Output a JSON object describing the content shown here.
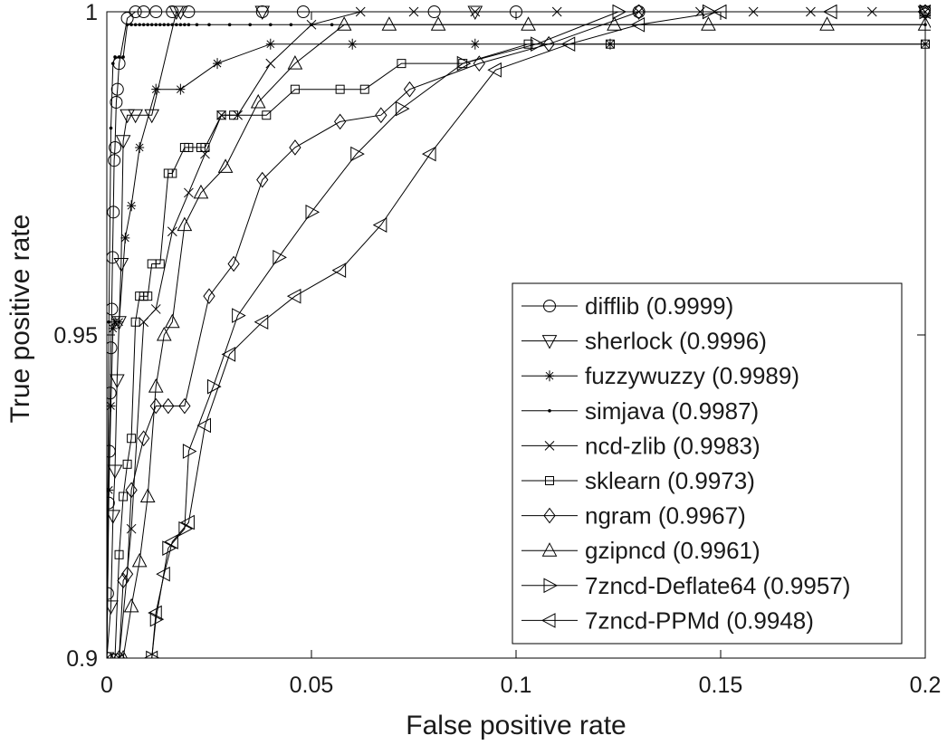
{
  "chart_data": {
    "type": "line",
    "xlabel": "False positive rate",
    "ylabel": "True positive rate",
    "xlim": [
      0,
      0.2
    ],
    "ylim": [
      0.9,
      1.0
    ],
    "xticks": [
      0,
      0.05,
      0.1,
      0.15,
      0.2
    ],
    "xtick_labels": [
      "0",
      "0.05",
      "0.1",
      "0.15",
      "0.2"
    ],
    "yticks": [
      0.9,
      0.95,
      1.0
    ],
    "ytick_labels": [
      "0.9",
      "0.95",
      "1"
    ],
    "legend_position": "bottom-right",
    "series": [
      {
        "name": "difflib",
        "label": "difflib (0.9999)",
        "marker": "circle",
        "x": [
          0,
          0.0002,
          0.0004,
          0.0006,
          0.0008,
          0.001,
          0.0012,
          0.0014,
          0.0016,
          0.0018,
          0.002,
          0.0023,
          0.0026,
          0.003,
          0.005,
          0.007,
          0.009,
          0.012,
          0.016,
          0.02,
          0.038,
          0.048,
          0.08,
          0.1,
          0.13,
          0.2
        ],
        "y": [
          0.9,
          0.91,
          0.924,
          0.932,
          0.941,
          0.948,
          0.954,
          0.962,
          0.969,
          0.977,
          0.979,
          0.986,
          0.988,
          0.992,
          0.999,
          1.0,
          1.0,
          1.0,
          1.0,
          1.0,
          1.0,
          1.0,
          1.0,
          1.0,
          1.0,
          1.0
        ]
      },
      {
        "name": "sherlock",
        "label": "sherlock (0.9996)",
        "marker": "triangle-down",
        "x": [
          0,
          0.001,
          0.0015,
          0.002,
          0.0025,
          0.003,
          0.0035,
          0.004,
          0.005,
          0.007,
          0.011,
          0.017,
          0.018,
          0.038,
          0.09,
          0.2
        ],
        "y": [
          0.9,
          0.908,
          0.922,
          0.929,
          0.943,
          0.952,
          0.961,
          0.98,
          0.984,
          0.984,
          0.984,
          1.0,
          1.0,
          1.0,
          1.0,
          1.0
        ]
      },
      {
        "name": "fuzzywuzzy",
        "label": "fuzzywuzzy (0.9989)",
        "marker": "star",
        "x": [
          0,
          0.0005,
          0.001,
          0.0015,
          0.002,
          0.003,
          0.0045,
          0.006,
          0.008,
          0.012,
          0.018,
          0.027,
          0.04,
          0.06,
          0.09,
          0.123,
          0.2
        ],
        "y": [
          0.9,
          0.926,
          0.939,
          0.951,
          0.952,
          0.952,
          0.965,
          0.97,
          0.979,
          0.988,
          0.988,
          0.992,
          0.995,
          0.995,
          0.995,
          0.995,
          0.995
        ]
      },
      {
        "name": "simjava",
        "label": "simjava (0.9987)",
        "marker": "dot",
        "x": [
          0,
          0.0005,
          0.001,
          0.0015,
          0.002,
          0.003,
          0.004,
          0.005,
          0.006,
          0.007,
          0.008,
          0.009,
          0.01,
          0.011,
          0.012,
          0.013,
          0.014,
          0.015,
          0.016,
          0.017,
          0.018,
          0.019,
          0.02,
          0.022,
          0.025,
          0.03,
          0.035,
          0.04,
          0.045,
          0.05,
          0.055,
          0.2
        ],
        "y": [
          0.9,
          0.952,
          0.982,
          0.992,
          0.993,
          0.993,
          0.993,
          0.998,
          0.998,
          0.998,
          0.998,
          0.998,
          0.998,
          0.998,
          0.998,
          0.998,
          0.998,
          0.998,
          0.998,
          0.998,
          0.998,
          0.998,
          0.998,
          0.998,
          0.998,
          0.998,
          0.998,
          0.998,
          0.998,
          0.998,
          0.998,
          0.998
        ]
      },
      {
        "name": "ncd-zlib",
        "label": "ncd-zlib (0.9983)",
        "marker": "x",
        "x": [
          0.003,
          0.006,
          0.009,
          0.012,
          0.016,
          0.02,
          0.024,
          0.028,
          0.032,
          0.04,
          0.05,
          0.062,
          0.075,
          0.09,
          0.11,
          0.13,
          0.145,
          0.158,
          0.172,
          0.187,
          0.2
        ],
        "y": [
          0.9,
          0.92,
          0.952,
          0.954,
          0.966,
          0.972,
          0.978,
          0.984,
          0.984,
          0.992,
          0.998,
          1.0,
          1.0,
          1.0,
          1.0,
          1.0,
          1.0,
          1.0,
          1.0,
          1.0,
          1.0
        ]
      },
      {
        "name": "sklearn",
        "label": "sklearn (0.9973)",
        "marker": "square",
        "x": [
          0.002,
          0.003,
          0.004,
          0.005,
          0.006,
          0.007,
          0.008,
          0.009,
          0.01,
          0.011,
          0.013,
          0.015,
          0.016,
          0.019,
          0.02,
          0.023,
          0.024,
          0.028,
          0.031,
          0.039,
          0.046,
          0.057,
          0.063,
          0.072,
          0.087,
          0.103,
          0.123,
          0.2
        ],
        "y": [
          0.9,
          0.916,
          0.925,
          0.93,
          0.934,
          0.952,
          0.956,
          0.956,
          0.956,
          0.961,
          0.961,
          0.975,
          0.975,
          0.979,
          0.979,
          0.979,
          0.979,
          0.984,
          0.984,
          0.984,
          0.988,
          0.988,
          0.988,
          0.992,
          0.992,
          0.995,
          0.995,
          0.995
        ]
      },
      {
        "name": "ngram",
        "label": "ngram (0.9967)",
        "marker": "diamond",
        "x": [
          0.003,
          0.004,
          0.005,
          0.006,
          0.009,
          0.012,
          0.015,
          0.019,
          0.025,
          0.031,
          0.038,
          0.046,
          0.057,
          0.067,
          0.074,
          0.091,
          0.108,
          0.13,
          0.2
        ],
        "y": [
          0.9,
          0.912,
          0.913,
          0.926,
          0.934,
          0.939,
          0.939,
          0.939,
          0.956,
          0.961,
          0.974,
          0.979,
          0.983,
          0.984,
          0.988,
          0.992,
          0.995,
          1.0,
          1.0
        ]
      },
      {
        "name": "gzipncd",
        "label": "gzipncd (0.9961)",
        "marker": "triangle-up",
        "x": [
          0.004,
          0.006,
          0.008,
          0.01,
          0.012,
          0.014,
          0.016,
          0.019,
          0.023,
          0.029,
          0.037,
          0.046,
          0.058,
          0.069,
          0.081,
          0.103,
          0.124,
          0.147,
          0.176,
          0.2
        ],
        "y": [
          0.9,
          0.908,
          0.915,
          0.925,
          0.942,
          0.95,
          0.952,
          0.967,
          0.972,
          0.976,
          0.986,
          0.992,
          0.998,
          0.998,
          0.998,
          0.998,
          0.998,
          0.998,
          0.998,
          0.998
        ]
      },
      {
        "name": "7zncd-Deflate64",
        "label": "7zncd-Deflate64 (0.9957)",
        "marker": "triangle-right",
        "x": [
          0.011,
          0.012,
          0.015,
          0.019,
          0.02,
          0.026,
          0.032,
          0.042,
          0.05,
          0.061,
          0.072,
          0.087,
          0.105,
          0.125,
          0.147,
          0.2
        ],
        "y": [
          0.9,
          0.906,
          0.917,
          0.92,
          0.932,
          0.942,
          0.953,
          0.962,
          0.969,
          0.978,
          0.985,
          0.992,
          0.995,
          1.0,
          1.0,
          1.0
        ]
      },
      {
        "name": "7zncd-PPMd",
        "label": "7zncd-PPMd (0.9948)",
        "marker": "triangle-left",
        "x": [
          0.011,
          0.012,
          0.014,
          0.016,
          0.02,
          0.024,
          0.03,
          0.038,
          0.046,
          0.057,
          0.067,
          0.079,
          0.095,
          0.113,
          0.13,
          0.15,
          0.177,
          0.2
        ],
        "y": [
          0.9,
          0.907,
          0.913,
          0.918,
          0.921,
          0.936,
          0.947,
          0.952,
          0.956,
          0.96,
          0.967,
          0.978,
          0.991,
          0.995,
          0.998,
          1.0,
          1.0,
          1.0
        ]
      }
    ]
  }
}
